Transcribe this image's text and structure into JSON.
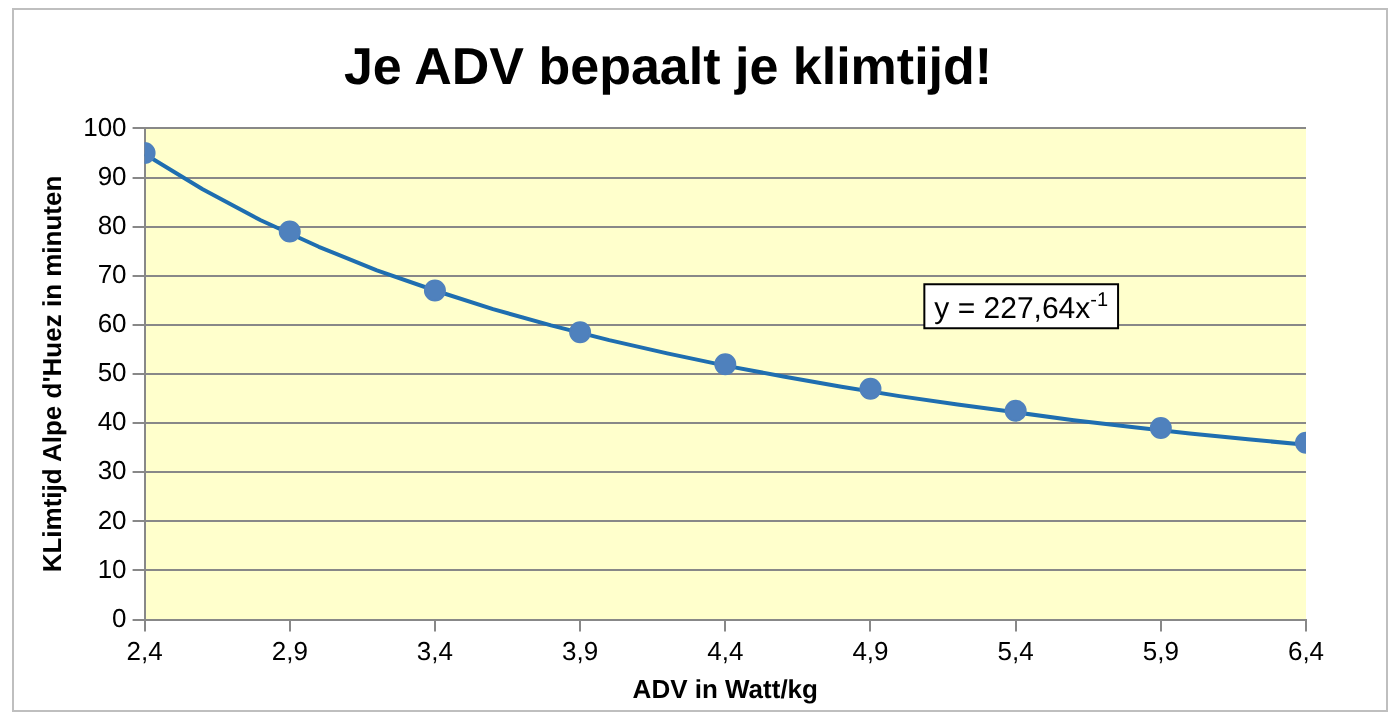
{
  "chart_data": {
    "type": "scatter",
    "title": "Je ADV bepaalt je klimtijd!",
    "xlabel": "ADV in Watt/kg",
    "ylabel": "KLimtijd Alpe d'Huez in minuten",
    "xlim": [
      2.4,
      6.4
    ],
    "xticks": [
      {
        "value": 2.4,
        "label": "2,4"
      },
      {
        "value": 2.9,
        "label": "2,9"
      },
      {
        "value": 3.4,
        "label": "3,4"
      },
      {
        "value": 3.9,
        "label": "3,9"
      },
      {
        "value": 4.4,
        "label": "4,4"
      },
      {
        "value": 4.9,
        "label": "4,9"
      },
      {
        "value": 5.4,
        "label": "5,4"
      },
      {
        "value": 5.9,
        "label": "5,9"
      },
      {
        "value": 6.4,
        "label": "6,4"
      }
    ],
    "ylim": [
      0,
      100
    ],
    "yticks": [
      0,
      10,
      20,
      30,
      40,
      50,
      60,
      70,
      80,
      90,
      100
    ],
    "grid": "y",
    "legend": false,
    "marker": "circle",
    "series": [
      {
        "color": "#4f81bd",
        "x": [
          2.4,
          2.9,
          3.4,
          3.9,
          4.4,
          4.9,
          5.4,
          5.9,
          6.4
        ],
        "values": [
          95,
          79,
          67,
          58.5,
          52,
          47,
          42.5,
          39,
          36
        ]
      },
      {
        "type": "line",
        "color": "#1f6eb0",
        "marker": "none",
        "x": [
          2.4,
          2.6,
          2.8,
          3.0,
          3.2,
          3.4,
          3.6,
          3.8,
          4.0,
          4.2,
          4.4,
          4.6,
          4.8,
          5.0,
          5.2,
          5.4,
          5.6,
          5.8,
          6.0,
          6.2,
          6.4
        ],
        "values": [
          94.8,
          87.6,
          81.3,
          75.9,
          71.1,
          67,
          63.2,
          59.9,
          56.9,
          54.2,
          51.7,
          49.5,
          47.4,
          45.5,
          43.8,
          42.2,
          40.6,
          39.2,
          37.9,
          36.7,
          35.6
        ]
      }
    ],
    "annotations": [
      "y = 227,64x$^{-1}$"
    ]
  }
}
